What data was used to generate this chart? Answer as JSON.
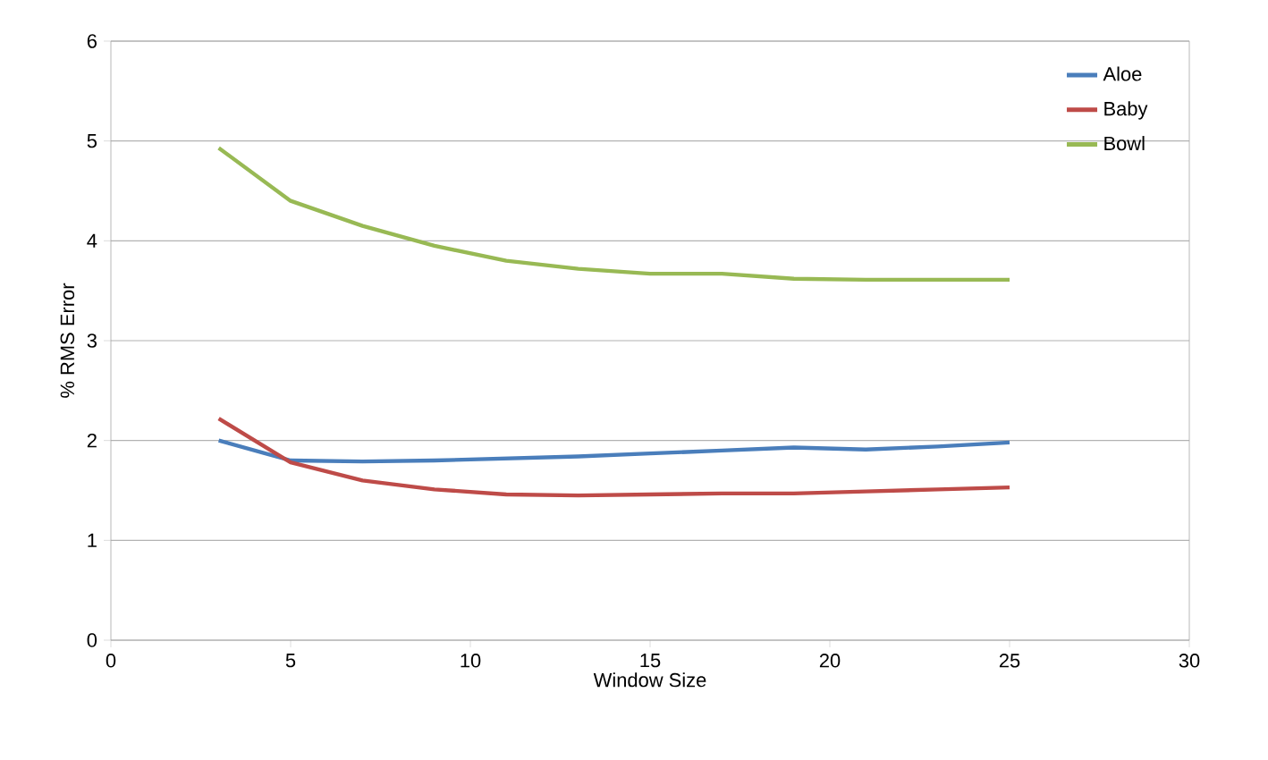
{
  "chart_data": {
    "type": "line",
    "xlabel": "Window Size",
    "ylabel": "% RMS Error",
    "xlim": [
      0,
      30
    ],
    "xticks": [
      0,
      5,
      10,
      15,
      20,
      25,
      30
    ],
    "ylim": [
      0,
      6
    ],
    "yticks": [
      0,
      1,
      2,
      3,
      4,
      5,
      6
    ],
    "grid": "y",
    "legend": "top right",
    "line_style": "solid",
    "marker": "none",
    "x": [
      3,
      5,
      7,
      9,
      11,
      13,
      15,
      17,
      19,
      21,
      23,
      25
    ],
    "series": [
      {
        "name": "Aloe",
        "color": "#4a7ebb",
        "values": [
          2.0,
          1.8,
          1.79,
          1.8,
          1.82,
          1.84,
          1.87,
          1.9,
          1.93,
          1.91,
          1.94,
          1.98
        ]
      },
      {
        "name": "Baby",
        "color": "#be4b48",
        "values": [
          2.22,
          1.78,
          1.6,
          1.51,
          1.46,
          1.45,
          1.46,
          1.47,
          1.47,
          1.49,
          1.51,
          1.53
        ]
      },
      {
        "name": "Bowl",
        "color": "#98b954",
        "values": [
          4.93,
          4.4,
          4.15,
          3.95,
          3.8,
          3.72,
          3.67,
          3.67,
          3.62,
          3.61,
          3.61,
          3.61
        ]
      }
    ]
  }
}
